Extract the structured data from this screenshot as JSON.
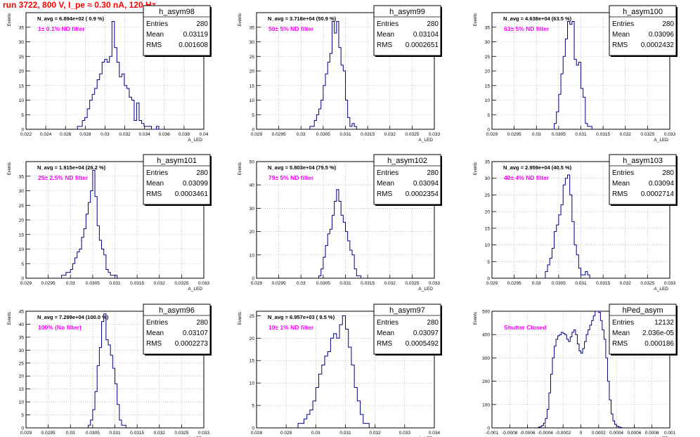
{
  "header": {
    "run_title": "run 3722,   800 V, I_pe ≈ 0.30 nA, 120 Hz"
  },
  "colors": {
    "histogram": "#000080",
    "filter_label": "#ff00ff",
    "title": "#ff0000",
    "axis": "#000000"
  },
  "chart_data": [
    {
      "type": "bar",
      "name": "h_asym98",
      "stats": {
        "entries": "280",
        "mean": "0.03119",
        "rms": "0.001608"
      },
      "navg": "N_avg = 6.894e+02 ( 0.9 %)",
      "filter": "1± 0.1% ND filter",
      "xlim": [
        0.022,
        0.04
      ],
      "ylim": [
        0,
        40
      ],
      "xticks": [
        "0.022",
        "0.024",
        "0.026",
        "0.028",
        "0.03",
        "0.032",
        "0.034",
        "0.036",
        "0.038",
        "0.04"
      ],
      "yticks": [
        "0",
        "5",
        "10",
        "15",
        "20",
        "25",
        "30",
        "35"
      ],
      "ylabel": "Events",
      "xlabel": "A_LED",
      "bin_start": 0.0272,
      "bin_width": 0.00025,
      "values": [
        1,
        1,
        3,
        4,
        7,
        10,
        12,
        14,
        17,
        19,
        23,
        24,
        23,
        25,
        37,
        28,
        23,
        18,
        19,
        15,
        14,
        11,
        10,
        3,
        9,
        3,
        2,
        1,
        1,
        1,
        0,
        0,
        1,
        0
      ]
    },
    {
      "type": "bar",
      "name": "h_asym99",
      "stats": {
        "entries": "280",
        "mean": "0.03104",
        "rms": "0.0002651"
      },
      "navg": "N_avg = 3.718e+04 (50.9 %)",
      "filter": "50± 5% ND filter",
      "xlim": [
        0.029,
        0.033
      ],
      "ylim": [
        0,
        40
      ],
      "xticks": [
        "0.029",
        "0.0295",
        "0.03",
        "0.0305",
        "0.031",
        "0.0315",
        "0.032",
        "0.0325",
        "0.033"
      ],
      "yticks": [
        "0",
        "5",
        "10",
        "15",
        "20",
        "25",
        "30",
        "35"
      ],
      "ylabel": "Events",
      "xlabel": "A_LED",
      "bin_start": 0.0302,
      "bin_width": 5e-05,
      "values": [
        1,
        1,
        3,
        5,
        7,
        10,
        15,
        19,
        23,
        26,
        37,
        33,
        37,
        28,
        22,
        20,
        10,
        4,
        1,
        2,
        1
      ]
    },
    {
      "type": "bar",
      "name": "h_asym100",
      "stats": {
        "entries": "280",
        "mean": "0.03096",
        "rms": "0.0002432"
      },
      "navg": "N_avg = 4.638e+04 (63.5 %)",
      "filter": "63± 5% ND filter",
      "xlim": [
        0.029,
        0.033
      ],
      "ylim": [
        0,
        40
      ],
      "xticks": [
        "0.029",
        "0.0295",
        "0.03",
        "0.0305",
        "0.031",
        "0.0315",
        "0.032",
        "0.0325",
        "0.033"
      ],
      "yticks": [
        "0",
        "5",
        "10",
        "15",
        "20",
        "25",
        "30",
        "35"
      ],
      "ylabel": "Events",
      "xlabel": "A_LED",
      "bin_start": 0.0304,
      "bin_width": 5e-05,
      "values": [
        2,
        6,
        12,
        19,
        25,
        31,
        37,
        36,
        37,
        24,
        22,
        23,
        14,
        11,
        2,
        1,
        1
      ]
    },
    {
      "type": "bar",
      "name": "h_asym101",
      "stats": {
        "entries": "280",
        "mean": "0.03099",
        "rms": "0.0003461"
      },
      "navg": "N_avg = 1.915e+04 (26.2 %)",
      "filter": "25± 2.5% ND filter",
      "xlim": [
        0.029,
        0.033
      ],
      "ylim": [
        0,
        40
      ],
      "xticks": [
        "0.029",
        "0.0295",
        "0.03",
        "0.0305",
        "0.031",
        "0.0315",
        "0.032",
        "0.0325",
        "0.033"
      ],
      "yticks": [
        "0",
        "5",
        "10",
        "15",
        "20",
        "25",
        "30",
        "35"
      ],
      "ylabel": "Events",
      "xlabel": "A_LED",
      "bin_start": 0.0298,
      "bin_width": 5e-05,
      "values": [
        1,
        1,
        2,
        2,
        3,
        5,
        7,
        9,
        10,
        14,
        17,
        22,
        26,
        30,
        37,
        28,
        18,
        13,
        10,
        8,
        3,
        2,
        1,
        1,
        1
      ]
    },
    {
      "type": "bar",
      "name": "h_asym102",
      "stats": {
        "entries": "280",
        "mean": "0.03094",
        "rms": "0.0002354"
      },
      "navg": "N_avg = 5.803e+04 (79.5 %)",
      "filter": "79± 5% ND filter",
      "xlim": [
        0.029,
        0.033
      ],
      "ylim": [
        0,
        50
      ],
      "xticks": [
        "0.029",
        "0.0295",
        "0.03",
        "0.0305",
        "0.031",
        "0.0315",
        "0.032",
        "0.0325",
        "0.033"
      ],
      "yticks": [
        "0",
        "10",
        "20",
        "30",
        "40",
        "50"
      ],
      "ylabel": "Events",
      "xlabel": "A_LED",
      "bin_start": 0.0304,
      "bin_width": 5e-05,
      "values": [
        1,
        4,
        9,
        14,
        19,
        21,
        27,
        33,
        38,
        33,
        27,
        24,
        20,
        16,
        12,
        10,
        4,
        1,
        1
      ]
    },
    {
      "type": "bar",
      "name": "h_asym103",
      "stats": {
        "entries": "280",
        "mean": "0.03094",
        "rms": "0.0002714"
      },
      "navg": "N_avg = 2.959e+04 (40.5 %)",
      "filter": "40± 4% ND filter",
      "xlim": [
        0.029,
        0.033
      ],
      "ylim": [
        0,
        35
      ],
      "xticks": [
        "0.029",
        "0.0295",
        "0.03",
        "0.0305",
        "0.031",
        "0.0315",
        "0.032",
        "0.0325",
        "0.033"
      ],
      "yticks": [
        "0",
        "5",
        "10",
        "15",
        "20",
        "25",
        "30",
        "35"
      ],
      "ylabel": "Events",
      "xlabel": "A_LED",
      "bin_start": 0.0302,
      "bin_width": 5e-05,
      "values": [
        2,
        4,
        6,
        9,
        14,
        16,
        19,
        22,
        28,
        30,
        31,
        25,
        17,
        10,
        7,
        3,
        1,
        1,
        2,
        1
      ]
    },
    {
      "type": "bar",
      "name": "h_asym96",
      "stats": {
        "entries": "280",
        "mean": "0.03107",
        "rms": "0.0002273"
      },
      "navg": "N_avg = 7.299e+04 (100.0 %)",
      "filter": "100% (No filter)",
      "xlim": [
        0.029,
        0.033
      ],
      "ylim": [
        0,
        45
      ],
      "xticks": [
        "0.029",
        "0.0295",
        "0.03",
        "0.0305",
        "0.031",
        "0.0315",
        "0.032",
        "0.0325",
        "0.033"
      ],
      "yticks": [
        "0",
        "5",
        "10",
        "15",
        "20",
        "25",
        "30",
        "35",
        "40",
        "45"
      ],
      "ylabel": "Events",
      "xlabel": "A_LED",
      "bin_start": 0.0304,
      "bin_width": 5e-05,
      "values": [
        1,
        3,
        7,
        14,
        24,
        31,
        41,
        44,
        34,
        32,
        28,
        23,
        17,
        9,
        3,
        1,
        1
      ]
    },
    {
      "type": "bar",
      "name": "h_asym97",
      "stats": {
        "entries": "280",
        "mean": "0.03097",
        "rms": "0.0005492"
      },
      "navg": "N_avg = 6.957e+03 ( 9.5 %)",
      "filter": "10± 1% ND filter",
      "xlim": [
        0.028,
        0.034
      ],
      "ylim": [
        0,
        26
      ],
      "xticks": [
        "0.028",
        "0.029",
        "0.03",
        "0.031",
        "0.032",
        "0.033",
        "0.034"
      ],
      "yticks": [
        "0",
        "5",
        "10",
        "15",
        "20",
        "25"
      ],
      "ylabel": "Events",
      "xlabel": "A_LED",
      "bin_start": 0.0294,
      "bin_width": 0.0001,
      "values": [
        1,
        1,
        2,
        3,
        4,
        6,
        9,
        12,
        14,
        16,
        17,
        20,
        21,
        20,
        23,
        25,
        22,
        18,
        14,
        9,
        6,
        3,
        1,
        1
      ]
    },
    {
      "type": "bar",
      "name": "hPed_asym",
      "stats": {
        "entries": "12132",
        "mean": "2.036e-05",
        "rms": "0.000186"
      },
      "navg": "",
      "filter": "Shutter Closed",
      "xlim": [
        -0.001,
        0.001
      ],
      "ylim": [
        0,
        500
      ],
      "xticks": [
        "-0.001",
        "-0.0008",
        "-0.0006",
        "-0.0004",
        "-0.0002",
        "0",
        "0.0002",
        "0.0004",
        "0.0006",
        "0.0008",
        "0.001"
      ],
      "yticks": [
        "0",
        "100",
        "200",
        "300",
        "400",
        "500"
      ],
      "ylabel": "Events",
      "xlabel": "A_LED",
      "bin_start": -0.00048,
      "bin_width": 2e-05,
      "values": [
        3,
        5,
        10,
        20,
        40,
        80,
        150,
        230,
        300,
        350,
        380,
        395,
        400,
        410,
        405,
        400,
        380,
        370,
        390,
        410,
        420,
        400,
        360,
        330,
        320,
        340,
        370,
        400,
        420,
        440,
        460,
        480,
        500,
        510,
        495,
        460,
        420,
        380,
        300,
        200,
        120,
        60,
        30,
        15,
        8,
        4,
        2
      ]
    }
  ]
}
